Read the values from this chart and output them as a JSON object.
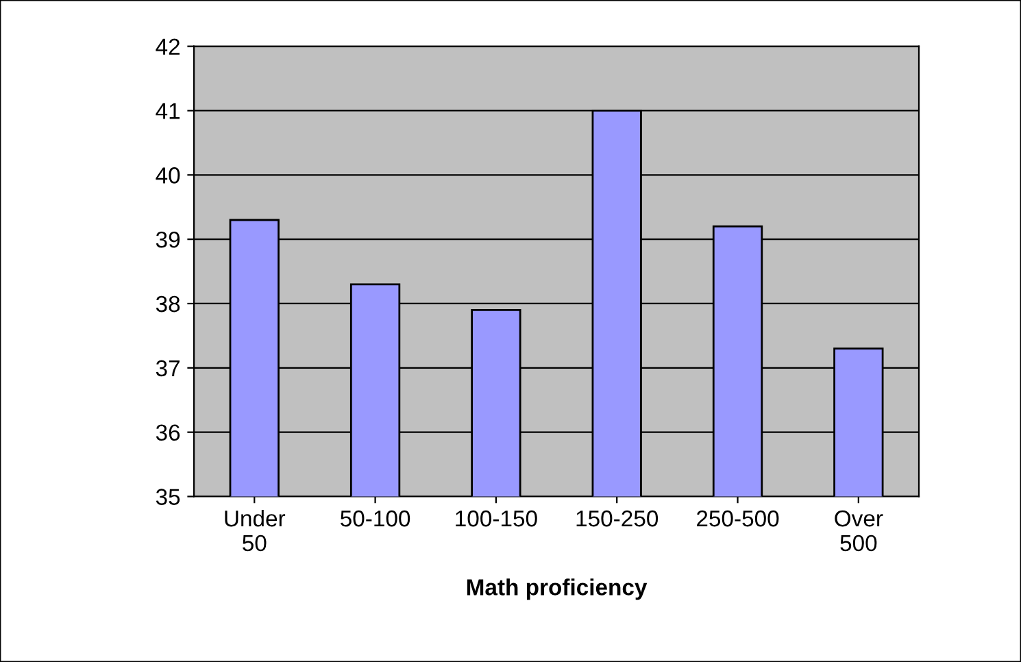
{
  "chart_data": {
    "type": "bar",
    "xlabel": "Math proficiency",
    "categories": [
      "Under\n50",
      "50-100",
      "100-150",
      "150-250",
      "250-500",
      "Over\n500"
    ],
    "values": [
      39.3,
      38.3,
      37.9,
      41.0,
      39.2,
      37.3
    ],
    "color": "#9999ff",
    "ylim": [
      35,
      42
    ],
    "yticks": [
      35,
      36,
      37,
      38,
      39,
      40,
      41,
      42
    ],
    "grid": "y"
  }
}
